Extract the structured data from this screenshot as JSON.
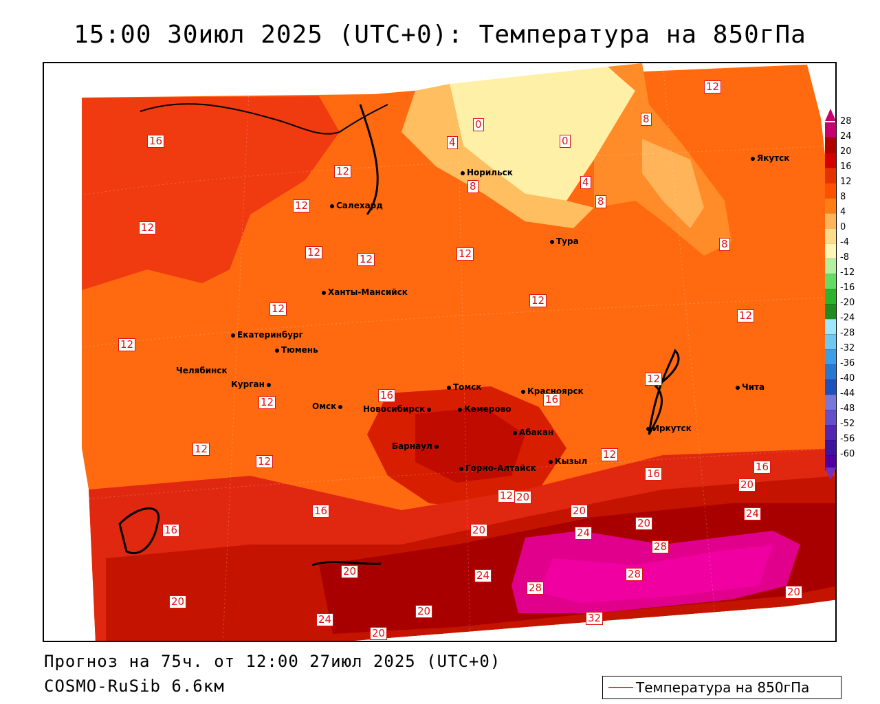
{
  "title": "15:00 30июл 2025 (UTC+0): Температура на 850гПа",
  "footer": {
    "forecast": "Прогноз на 75ч. от 12:00 27июл 2025 (UTC+0)",
    "model": "COSMO-RuSib 6.6км"
  },
  "legend": {
    "label": "Температура на 850гПа",
    "line_color": "#ff3333"
  },
  "colorbar": {
    "labels": [
      "28",
      "24",
      "20",
      "16",
      "12",
      "8",
      "4",
      "0",
      "-4",
      "-8",
      "-12",
      "-16",
      "-20",
      "-24",
      "-28",
      "-32",
      "-36",
      "-40",
      "-44",
      "-48",
      "-52",
      "-56",
      "-60"
    ],
    "colors": [
      "#c8006e",
      "#b00000",
      "#d20000",
      "#e63200",
      "#ff5000",
      "#ff7d14",
      "#ffb45a",
      "#ffdc8c",
      "#fff5b4",
      "#b4f0a0",
      "#64dc64",
      "#2db42d",
      "#1e8c1e",
      "#a0e6ff",
      "#6ec8f0",
      "#3c9ee6",
      "#2878d2",
      "#1e50be",
      "#7878dc",
      "#6450c8",
      "#5028b4",
      "#3c14a0",
      "#5000a0"
    ]
  },
  "cities": [
    {
      "name": "Норильск"
    },
    {
      "name": "Якутск"
    },
    {
      "name": "Салехард"
    },
    {
      "name": "Тура"
    },
    {
      "name": "Ханты-Мансийск"
    },
    {
      "name": "Екатеринбург"
    },
    {
      "name": "Тюмень"
    },
    {
      "name": "Челябинск"
    },
    {
      "name": "Курган"
    },
    {
      "name": "Омск"
    },
    {
      "name": "Новосибирск"
    },
    {
      "name": "Томск"
    },
    {
      "name": "Кемерово"
    },
    {
      "name": "Красноярск"
    },
    {
      "name": "Барнаул"
    },
    {
      "name": "Абакан"
    },
    {
      "name": "Горно-Алтайск"
    },
    {
      "name": "Кызыл"
    },
    {
      "name": "Иркутск"
    },
    {
      "name": "Чита"
    }
  ],
  "contour_labels": [
    "16",
    "12",
    "12",
    "12",
    "12",
    "12",
    "12",
    "12",
    "12",
    "12",
    "12",
    "12",
    "12",
    "12",
    "12",
    "12",
    "12",
    "16",
    "16",
    "16",
    "16",
    "16",
    "16",
    "20",
    "20",
    "20",
    "20",
    "20",
    "20",
    "20",
    "20",
    "20",
    "24",
    "24",
    "24",
    "24",
    "28",
    "28",
    "28",
    "32",
    "0",
    "0",
    "4",
    "4",
    "8",
    "8",
    "8",
    "8",
    "12",
    "20"
  ]
}
